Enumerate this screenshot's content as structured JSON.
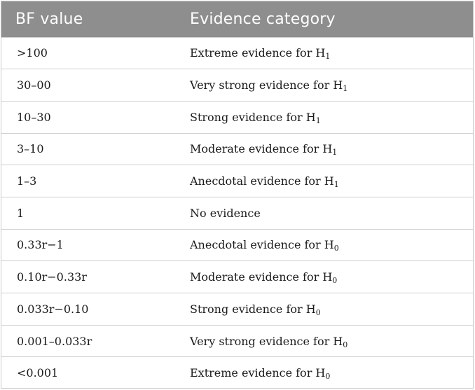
{
  "table": {
    "headers": [
      "BF value",
      "Evidence category"
    ],
    "rows": [
      {
        "bf": ">100",
        "category_text": "Extreme evidence for H",
        "sub": "1"
      },
      {
        "bf": "30–00",
        "category_text": "Very strong evidence for H",
        "sub": "1"
      },
      {
        "bf": "10–30",
        "category_text": "Strong evidence for H",
        "sub": "1"
      },
      {
        "bf": "3–10",
        "category_text": "Moderate evidence for H",
        "sub": "1"
      },
      {
        "bf": "1–3",
        "category_text": "Anecdotal evidence for H",
        "sub": "1"
      },
      {
        "bf": "1",
        "category_text": "No evidence",
        "sub": ""
      },
      {
        "bf": "0.33r−1",
        "category_text": "Anecdotal evidence for H",
        "sub": "0"
      },
      {
        "bf": "0.10r−0.33r",
        "category_text": "Moderate evidence for H",
        "sub": "0"
      },
      {
        "bf": "0.033r−0.10",
        "category_text": "Strong evidence for H",
        "sub": "0"
      },
      {
        "bf": "0.001–0.033r",
        "category_text": "Very strong evidence for H",
        "sub": "0"
      },
      {
        "bf": "<0.001",
        "category_text": "Extreme evidence for H",
        "sub": "0"
      }
    ]
  }
}
